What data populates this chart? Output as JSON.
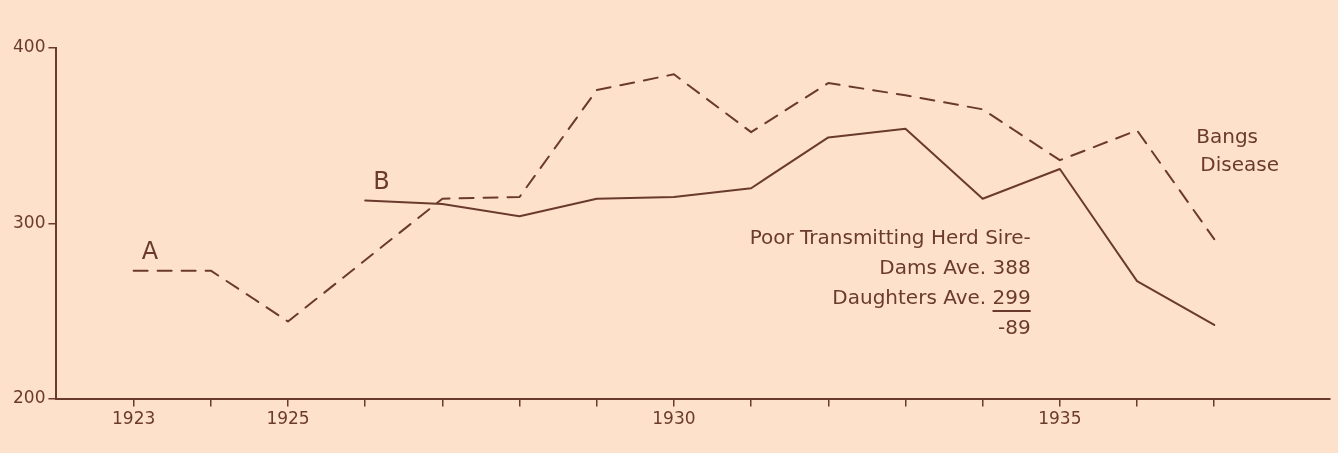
{
  "chart_data": {
    "type": "line",
    "xlim": [
      1922,
      1938.5
    ],
    "ylim": [
      200,
      400
    ],
    "xticks": [
      {
        "value": 1923,
        "label": "1923"
      },
      {
        "value": 1924,
        "label": null
      },
      {
        "value": 1925,
        "label": "1925"
      },
      {
        "value": 1926,
        "label": null
      },
      {
        "value": 1927,
        "label": null
      },
      {
        "value": 1928,
        "label": null
      },
      {
        "value": 1929,
        "label": null
      },
      {
        "value": 1930,
        "label": "1930"
      },
      {
        "value": 1931,
        "label": null
      },
      {
        "value": 1932,
        "label": null
      },
      {
        "value": 1933,
        "label": null
      },
      {
        "value": 1934,
        "label": null
      },
      {
        "value": 1935,
        "label": "1935"
      },
      {
        "value": 1936,
        "label": null
      },
      {
        "value": 1937,
        "label": null
      }
    ],
    "yticks": [
      200,
      300,
      400
    ],
    "grid": false,
    "legend": false,
    "marker": "none",
    "series": [
      {
        "name": "A",
        "color": "#6b3a2e",
        "line_style": "dashed",
        "x": [
          1923,
          1924,
          1925,
          1927,
          1928,
          1929,
          1930,
          1931,
          1932,
          1933,
          1934,
          1935,
          1936,
          1937
        ],
        "values": [
          273,
          273,
          244,
          314,
          315,
          376,
          385,
          352,
          380,
          373,
          365,
          336,
          353,
          291
        ]
      },
      {
        "name": "B",
        "color": "#6b3a2e",
        "line_style": "solid",
        "x": [
          1926,
          1927,
          1928,
          1929,
          1930,
          1931,
          1932,
          1933,
          1934,
          1935,
          1936,
          1937
        ],
        "values": [
          313,
          311,
          304,
          314,
          315,
          320,
          349,
          354,
          314,
          331,
          267,
          242
        ]
      }
    ],
    "annotations": [
      "Bangs Disease",
      "Poor Transmitting Herd Sire-",
      "Dams Ave. 388",
      "Daughters Ave. 299",
      "-89"
    ]
  }
}
